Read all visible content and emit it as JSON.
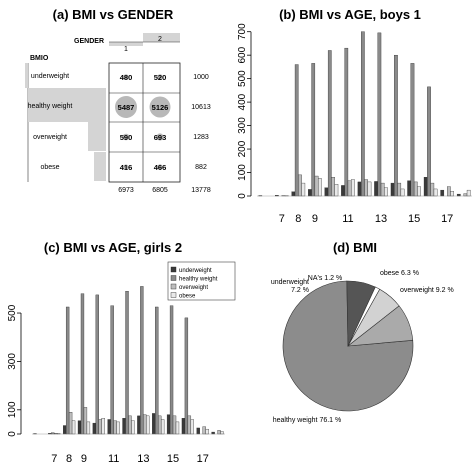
{
  "colors": {
    "underweight": "#3a3a3a",
    "healthy": "#8a8a8a",
    "overweight": "#bdbdbd",
    "obese": "#e9e9e9",
    "na": "#ffffff",
    "cell_shade": "#d4d4d4",
    "circle": "#b8b8b8",
    "pie_healthy": "#8c8c8c",
    "pie_under": "#555555",
    "pie_over": "#aaaaaa",
    "pie_obese": "#d2d2d2"
  },
  "chart_data": [
    {
      "type": "table",
      "title": "(a) BMI vs GENDER",
      "col_var": "GENDER",
      "row_var": "BMIO",
      "columns": [
        "1",
        "2"
      ],
      "rows": [
        "underweight",
        "healthy weight",
        "overweight",
        "obese"
      ],
      "cells": [
        [
          480,
          520
        ],
        [
          5487,
          5126
        ],
        [
          590,
          693
        ],
        [
          416,
          466
        ]
      ],
      "row_totals": [
        1000,
        10613,
        1283,
        882
      ],
      "col_totals": [
        6973,
        6805
      ],
      "grand_total": 13778
    },
    {
      "type": "bar",
      "title": "(b) BMI vs AGE, boys 1",
      "x": [
        6,
        7,
        8,
        9,
        10,
        11,
        12,
        13,
        14,
        15,
        16,
        17,
        18
      ],
      "xticks": [
        "7",
        "8",
        "9",
        "11",
        "13",
        "15",
        "17"
      ],
      "xtick_values": [
        7,
        8,
        9,
        11,
        13,
        15,
        17
      ],
      "yticks": [
        "0",
        "100",
        "200",
        "300",
        "400",
        "500",
        "600",
        "700"
      ],
      "ylim": [
        0,
        720
      ],
      "series": [
        {
          "name": "underweight",
          "values": [
            2,
            3,
            18,
            28,
            35,
            45,
            60,
            62,
            55,
            65,
            80,
            25,
            8
          ]
        },
        {
          "name": "healthy weight",
          "values": [
            0,
            0,
            560,
            565,
            620,
            630,
            700,
            695,
            600,
            565,
            465,
            0,
            0
          ]
        },
        {
          "name": "overweight",
          "values": [
            0,
            2,
            90,
            85,
            80,
            65,
            70,
            55,
            55,
            60,
            55,
            40,
            10
          ]
        },
        {
          "name": "obese",
          "values": [
            0,
            1,
            55,
            75,
            50,
            70,
            60,
            35,
            30,
            40,
            30,
            20,
            25
          ]
        }
      ]
    },
    {
      "type": "bar",
      "title": "(c) BMI vs AGE, girls 2",
      "x": [
        6,
        7,
        8,
        9,
        10,
        11,
        12,
        13,
        14,
        15,
        16,
        17,
        18
      ],
      "xticks": [
        "7",
        "8",
        "9",
        "11",
        "13",
        "15",
        "17"
      ],
      "xtick_values": [
        7,
        8,
        9,
        11,
        13,
        15,
        17
      ],
      "yticks": [
        "0",
        "100",
        "300",
        "500"
      ],
      "ytick_values": [
        0,
        100,
        300,
        500
      ],
      "ylim": [
        0,
        620
      ],
      "legend": [
        "underweight",
        "healthy weight",
        "overweight",
        "obese"
      ],
      "series": [
        {
          "name": "underweight",
          "values": [
            2,
            3,
            35,
            55,
            45,
            60,
            65,
            75,
            85,
            80,
            65,
            25,
            8
          ]
        },
        {
          "name": "healthy weight",
          "values": [
            0,
            5,
            525,
            580,
            575,
            530,
            590,
            610,
            525,
            530,
            480,
            0,
            0
          ]
        },
        {
          "name": "overweight",
          "values": [
            0,
            3,
            90,
            110,
            60,
            55,
            75,
            80,
            75,
            75,
            75,
            30,
            15
          ]
        },
        {
          "name": "obese",
          "values": [
            0,
            2,
            55,
            50,
            65,
            50,
            55,
            75,
            60,
            50,
            60,
            20,
            10
          ]
        }
      ]
    },
    {
      "type": "pie",
      "title": "(d) BMI",
      "slices": [
        {
          "label": "healthy weight 76.1 %",
          "value": 76.1
        },
        {
          "label": "underweight 7.2 %",
          "value": 7.2
        },
        {
          "label": "NA's 1.2 %",
          "value": 1.2
        },
        {
          "label": "obese 6.3 %",
          "value": 6.3
        },
        {
          "label": "overweight 9.2 %",
          "value": 9.2
        }
      ]
    }
  ]
}
